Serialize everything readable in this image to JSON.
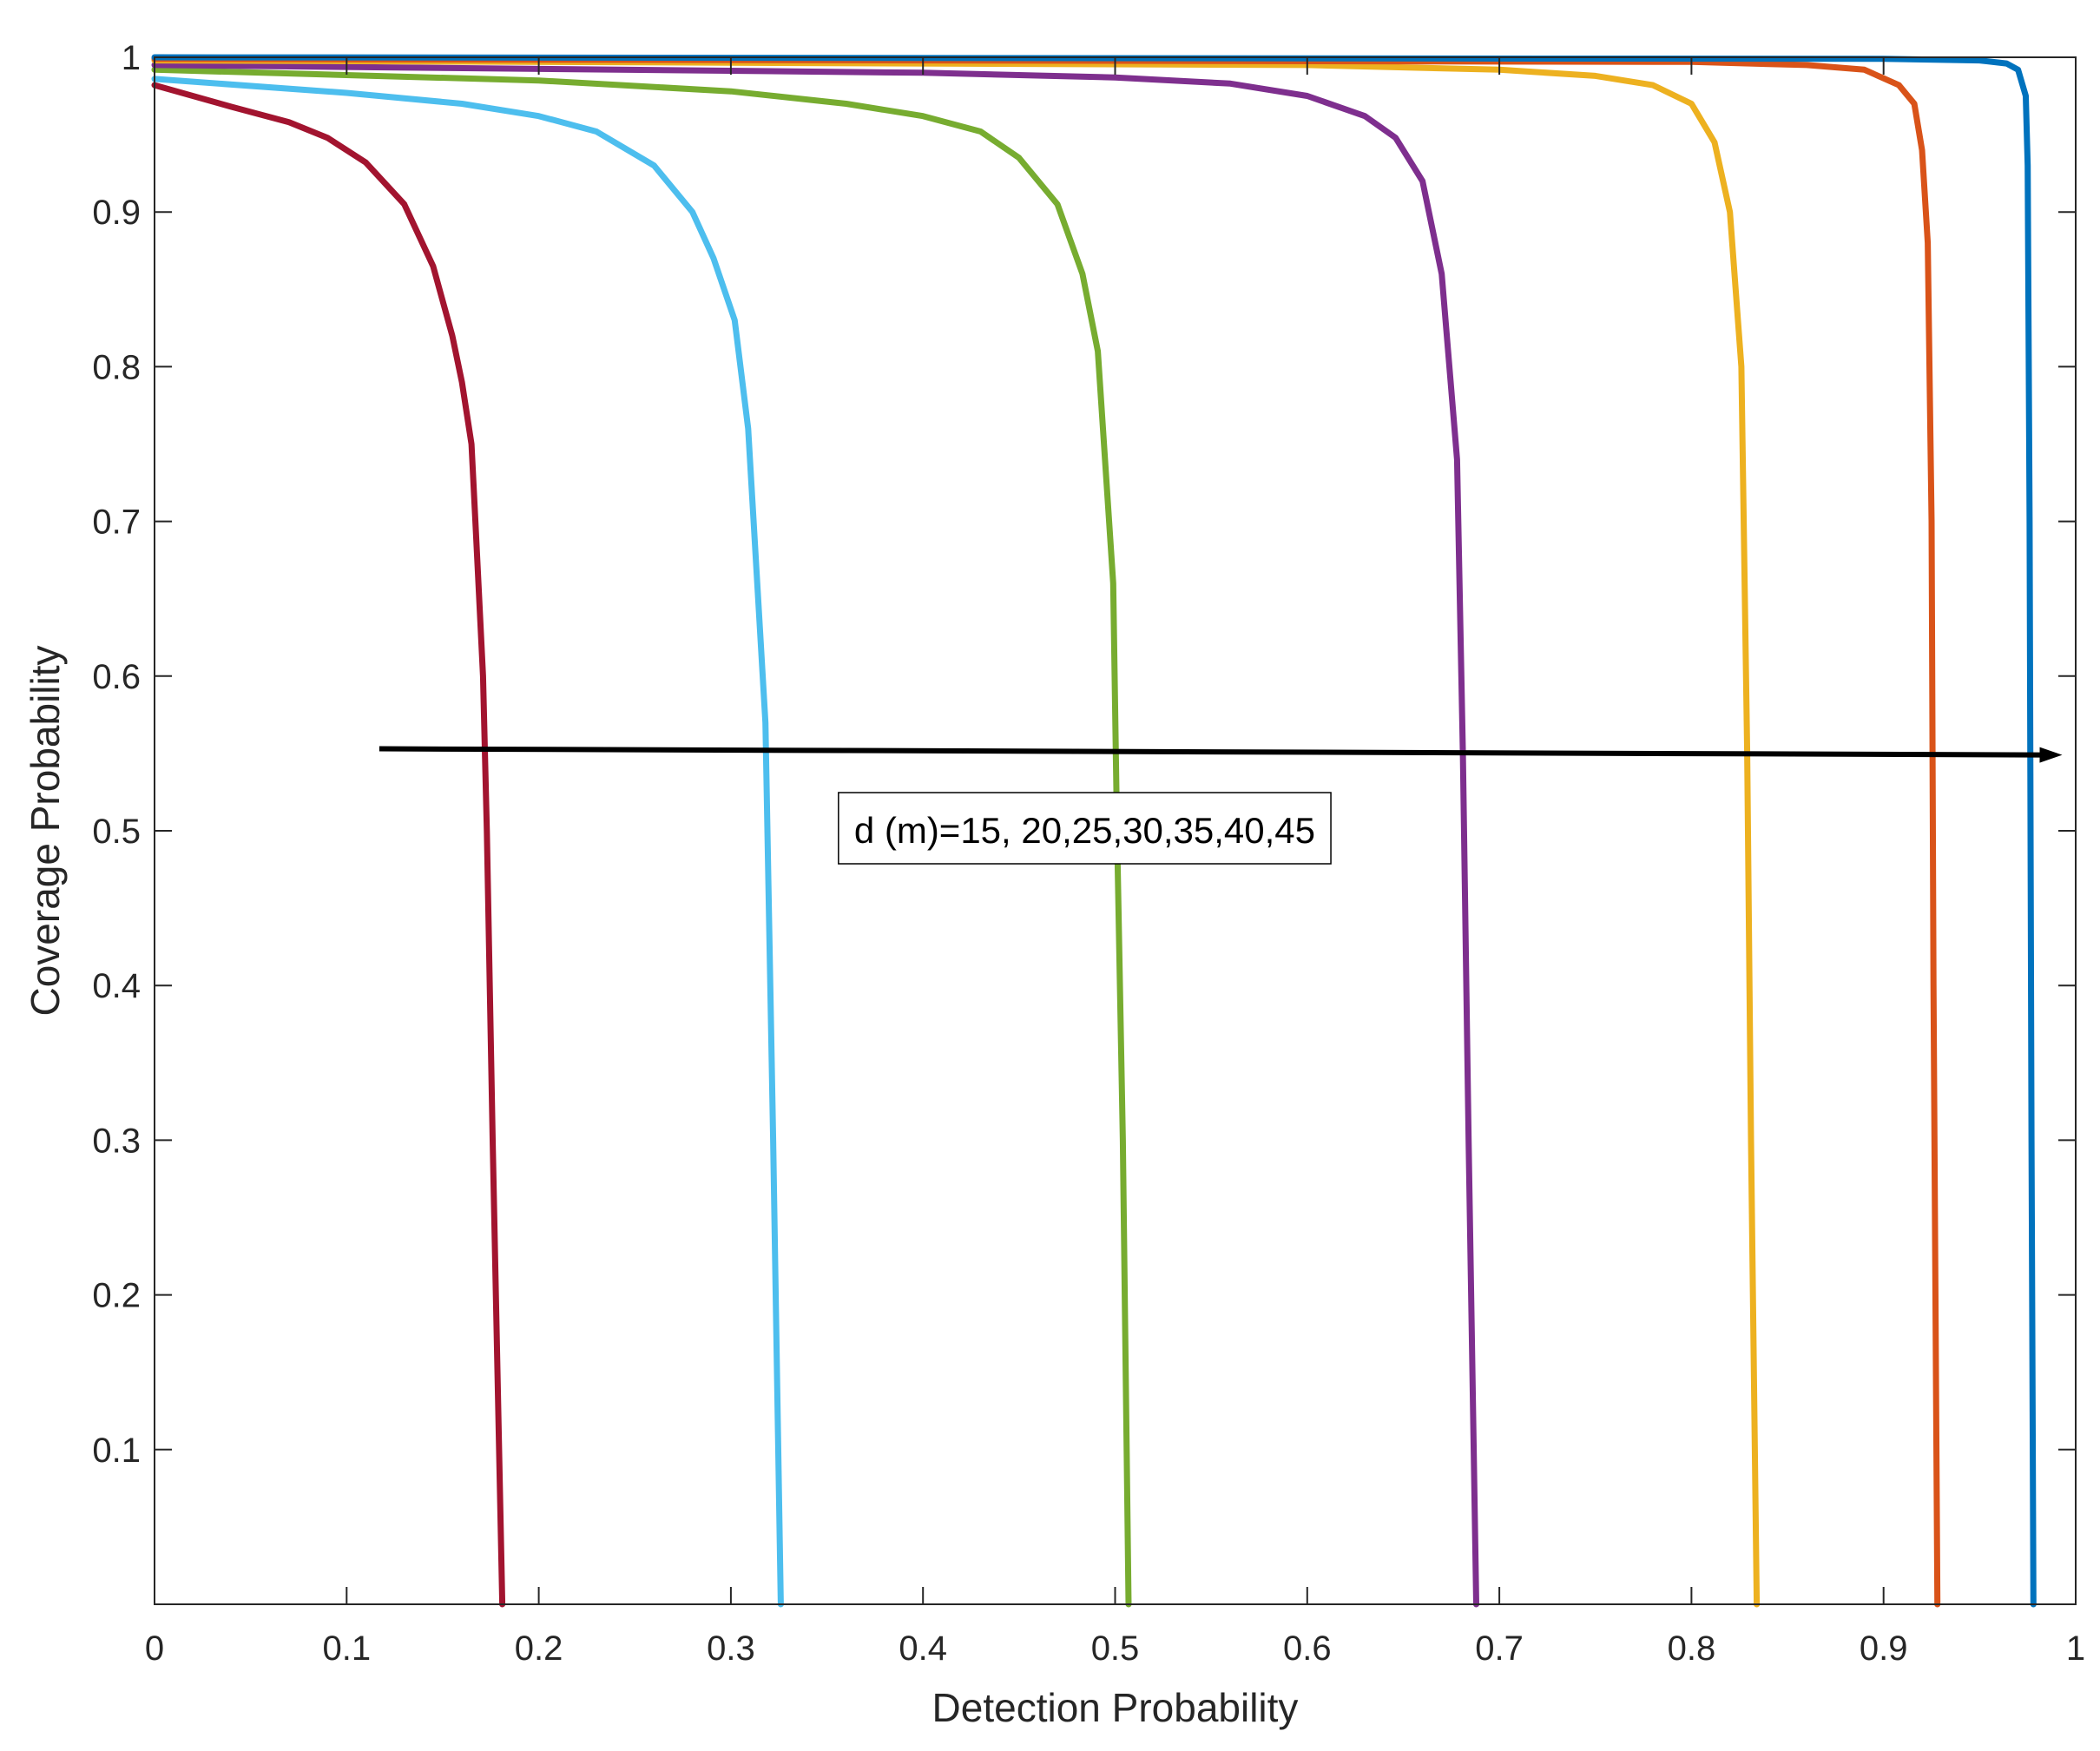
{
  "chart_data": {
    "type": "line",
    "title": "",
    "xlabel": "Detection Probability",
    "ylabel": "Coverage Probability",
    "xlim": [
      0,
      1
    ],
    "ylim": [
      0,
      1
    ],
    "grid": false,
    "x_ticks": [
      0,
      0.1,
      0.2,
      0.3,
      0.4,
      0.5,
      0.6,
      0.7,
      0.8,
      0.9,
      1
    ],
    "x_tick_labels": [
      "0",
      "0.1",
      "0.2",
      "0.3",
      "0.4",
      "0.5",
      "0.6",
      "0.7",
      "0.8",
      "0.9",
      "1"
    ],
    "y_ticks": [
      0.1,
      0.2,
      0.3,
      0.4,
      0.5,
      0.6,
      0.7,
      0.8,
      0.9,
      1
    ],
    "y_tick_labels": [
      "0.1",
      "0.2",
      "0.3",
      "0.4",
      "0.5",
      "0.6",
      "0.7",
      "0.8",
      "0.9",
      "1"
    ],
    "series": [
      {
        "color": "#A2142F",
        "points": [
          [
            0,
            0.982
          ],
          [
            0.04,
            0.968
          ],
          [
            0.07,
            0.958
          ],
          [
            0.09,
            0.948
          ],
          [
            0.11,
            0.932
          ],
          [
            0.13,
            0.905
          ],
          [
            0.145,
            0.865
          ],
          [
            0.155,
            0.82
          ],
          [
            0.16,
            0.79
          ],
          [
            0.165,
            0.75
          ],
          [
            0.167,
            0.7
          ],
          [
            0.171,
            0.6
          ],
          [
            0.173,
            0.5
          ],
          [
            0.176,
            0.3
          ],
          [
            0.181,
            0.0
          ]
        ]
      },
      {
        "color": "#4DBEEE",
        "points": [
          [
            0,
            0.986
          ],
          [
            0.1,
            0.977
          ],
          [
            0.16,
            0.97
          ],
          [
            0.2,
            0.962
          ],
          [
            0.23,
            0.952
          ],
          [
            0.26,
            0.93
          ],
          [
            0.28,
            0.9
          ],
          [
            0.291,
            0.87
          ],
          [
            0.302,
            0.83
          ],
          [
            0.309,
            0.76
          ],
          [
            0.318,
            0.57
          ],
          [
            0.322,
            0.3
          ],
          [
            0.326,
            0.0
          ]
        ]
      },
      {
        "color": "#77AC30",
        "points": [
          [
            0,
            0.992
          ],
          [
            0.2,
            0.985
          ],
          [
            0.3,
            0.978
          ],
          [
            0.36,
            0.97
          ],
          [
            0.4,
            0.962
          ],
          [
            0.43,
            0.952
          ],
          [
            0.45,
            0.935
          ],
          [
            0.47,
            0.905
          ],
          [
            0.483,
            0.86
          ],
          [
            0.491,
            0.81
          ],
          [
            0.499,
            0.66
          ],
          [
            0.501,
            0.5
          ],
          [
            0.504,
            0.3
          ],
          [
            0.507,
            0.0
          ]
        ]
      },
      {
        "color": "#7E2F8E",
        "points": [
          [
            0,
            0.995
          ],
          [
            0.4,
            0.99
          ],
          [
            0.5,
            0.987
          ],
          [
            0.56,
            0.983
          ],
          [
            0.6,
            0.975
          ],
          [
            0.63,
            0.962
          ],
          [
            0.646,
            0.948
          ],
          [
            0.66,
            0.92
          ],
          [
            0.67,
            0.86
          ],
          [
            0.678,
            0.74
          ],
          [
            0.681,
            0.55
          ],
          [
            0.684,
            0.3
          ],
          [
            0.688,
            0.0
          ]
        ]
      },
      {
        "color": "#EDB120",
        "points": [
          [
            0,
            0.998
          ],
          [
            0.6,
            0.995
          ],
          [
            0.7,
            0.992
          ],
          [
            0.75,
            0.988
          ],
          [
            0.78,
            0.982
          ],
          [
            0.8,
            0.97
          ],
          [
            0.812,
            0.945
          ],
          [
            0.82,
            0.9
          ],
          [
            0.826,
            0.8
          ],
          [
            0.829,
            0.55
          ],
          [
            0.831,
            0.3
          ],
          [
            0.834,
            0.0
          ]
        ]
      },
      {
        "color": "#D95319",
        "points": [
          [
            0,
            0.999
          ],
          [
            0.8,
            0.997
          ],
          [
            0.86,
            0.995
          ],
          [
            0.89,
            0.992
          ],
          [
            0.908,
            0.982
          ],
          [
            0.916,
            0.97
          ],
          [
            0.92,
            0.94
          ],
          [
            0.923,
            0.88
          ],
          [
            0.925,
            0.7
          ],
          [
            0.926,
            0.4
          ],
          [
            0.928,
            0.0
          ]
        ]
      },
      {
        "color": "#0072BD",
        "points": [
          [
            0,
            1.0
          ],
          [
            0.9,
            0.999
          ],
          [
            0.95,
            0.998
          ],
          [
            0.964,
            0.996
          ],
          [
            0.97,
            0.992
          ],
          [
            0.974,
            0.975
          ],
          [
            0.975,
            0.93
          ],
          [
            0.976,
            0.7
          ],
          [
            0.977,
            0.3
          ],
          [
            0.978,
            0.0
          ]
        ]
      }
    ],
    "annotations": [
      {
        "type": "arrow",
        "from": [
          0.117,
          0.553
        ],
        "to": [
          0.993,
          0.549
        ],
        "color": "#000000"
      },
      {
        "type": "textbox",
        "text": "d (m)=15, 20,25,30,35,40,45",
        "x": 0.356,
        "y": 0.5
      }
    ]
  }
}
